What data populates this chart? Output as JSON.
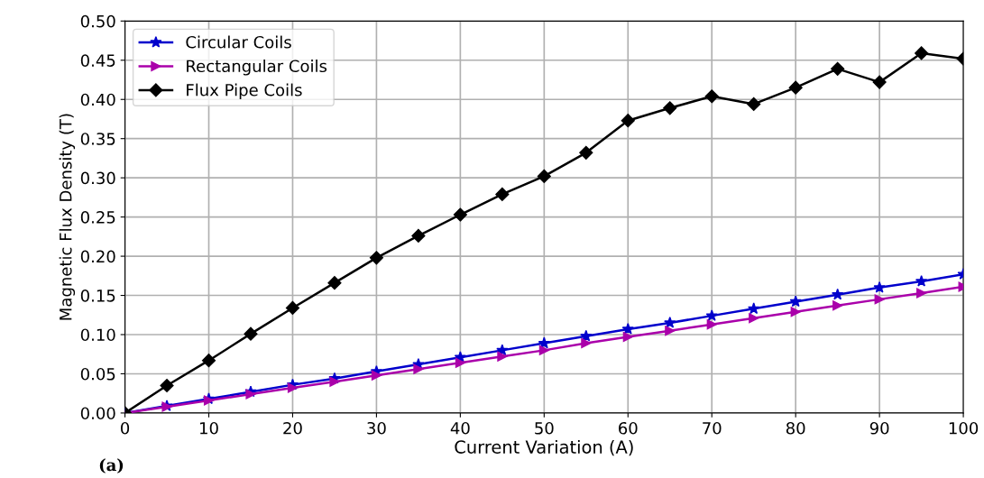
{
  "chart_data": {
    "type": "line",
    "xlabel": "Current Variation (A)",
    "ylabel": "Magnetic Flux Density (T)",
    "x": [
      0,
      5,
      10,
      15,
      20,
      25,
      30,
      35,
      40,
      45,
      50,
      55,
      60,
      65,
      70,
      75,
      80,
      85,
      90,
      95,
      100
    ],
    "series": [
      {
        "name": "Circular Coils",
        "color": "#0000cc",
        "marker": "star",
        "values": [
          0,
          0.009,
          0.018,
          0.027,
          0.036,
          0.044,
          0.053,
          0.062,
          0.071,
          0.08,
          0.089,
          0.098,
          0.107,
          0.115,
          0.124,
          0.133,
          0.142,
          0.151,
          0.16,
          0.168,
          0.177
        ]
      },
      {
        "name": "Rectangular Coils",
        "color": "#aa00aa",
        "marker": "triangle",
        "values": [
          0,
          0.008,
          0.016,
          0.024,
          0.032,
          0.04,
          0.048,
          0.056,
          0.064,
          0.072,
          0.08,
          0.089,
          0.097,
          0.105,
          0.113,
          0.121,
          0.129,
          0.137,
          0.145,
          0.153,
          0.161
        ]
      },
      {
        "name": "Flux Pipe Coils",
        "color": "#000000",
        "marker": "diamond",
        "values": [
          0,
          0.035,
          0.067,
          0.101,
          0.134,
          0.166,
          0.198,
          0.226,
          0.253,
          0.279,
          0.302,
          0.332,
          0.373,
          0.389,
          0.404,
          0.394,
          0.415,
          0.439,
          0.422,
          0.459,
          0.452
        ]
      }
    ],
    "xlim": [
      0,
      100
    ],
    "xticks": [
      0,
      10,
      20,
      30,
      40,
      50,
      60,
      70,
      80,
      90,
      100
    ],
    "ylim": [
      0,
      0.5
    ],
    "yticks": [
      {
        "value": 0,
        "label": "0.00"
      },
      {
        "value": 0.05,
        "label": "0.05"
      },
      {
        "value": 0.1,
        "label": "0.10"
      },
      {
        "value": 0.15,
        "label": "0.15"
      },
      {
        "value": 0.2,
        "label": "0.20"
      },
      {
        "value": 0.25,
        "label": "0.25"
      },
      {
        "value": 0.3,
        "label": "0.30"
      },
      {
        "value": 0.35,
        "label": "0.35"
      },
      {
        "value": 0.4,
        "label": "0.40"
      },
      {
        "value": 0.45,
        "label": "0.45"
      },
      {
        "value": 0.5,
        "label": "0.50"
      }
    ],
    "grid": true,
    "legend": "top left",
    "line_style": "solid",
    "annotations": [
      "(a)"
    ]
  }
}
